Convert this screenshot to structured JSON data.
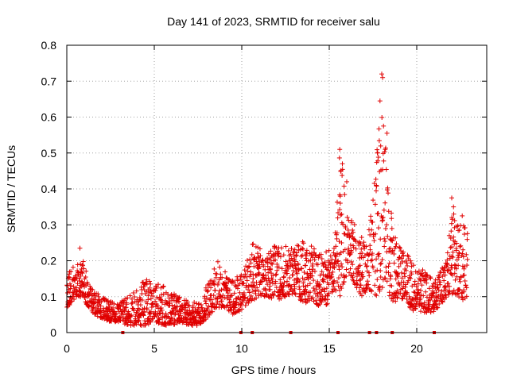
{
  "chart_data": {
    "type": "scatter",
    "title": "Day 141 of 2023, SRMTID for receiver salu",
    "xlabel": "GPS time / hours",
    "ylabel": "SRMTID / TECUs",
    "xlim": [
      0,
      24
    ],
    "ylim": [
      0,
      0.8
    ],
    "xticks": [
      0,
      5,
      10,
      15,
      20
    ],
    "xtick_labels": [
      "0",
      "5",
      "10",
      "15",
      "20"
    ],
    "yticks": [
      0,
      0.1,
      0.2,
      0.3,
      0.4,
      0.5,
      0.6,
      0.7,
      0.8
    ],
    "ytick_labels": [
      "0",
      "0.1",
      "0.2",
      "0.3",
      "0.4",
      "0.5",
      "0.6",
      "0.7",
      "0.8"
    ],
    "grid": true,
    "marker": "+",
    "series_color": "#e00000",
    "data_gaps_x": [
      3.2,
      9.95,
      10.6,
      12.8,
      15.5,
      17.3,
      17.7,
      18.6,
      21.0
    ],
    "envelope": {
      "x": [
        0,
        0.25,
        0.5,
        0.75,
        1.0,
        1.25,
        1.5,
        2.0,
        2.5,
        3.0,
        3.5,
        4.0,
        4.5,
        5.0,
        5.5,
        6.0,
        6.5,
        7.0,
        7.5,
        7.8,
        8.2,
        8.6,
        9.0,
        9.5,
        9.9,
        10.3,
        10.7,
        11.0,
        11.5,
        12.0,
        12.5,
        13.0,
        13.5,
        14.0,
        14.5,
        15.0,
        15.3,
        15.6,
        15.9,
        16.1,
        16.3,
        16.6,
        16.9,
        17.2,
        17.5,
        17.8,
        18.0,
        18.2,
        18.4,
        18.7,
        19.0,
        19.4,
        19.8,
        20.2,
        20.6,
        21.0,
        21.4,
        21.8,
        22.0,
        22.3,
        22.6,
        22.9
      ],
      "low": [
        0.07,
        0.08,
        0.09,
        0.1,
        0.09,
        0.07,
        0.05,
        0.04,
        0.03,
        0.03,
        0.02,
        0.02,
        0.02,
        0.03,
        0.02,
        0.02,
        0.03,
        0.02,
        0.02,
        0.03,
        0.05,
        0.07,
        0.07,
        0.05,
        0.06,
        0.08,
        0.09,
        0.1,
        0.1,
        0.09,
        0.1,
        0.11,
        0.08,
        0.09,
        0.07,
        0.08,
        0.12,
        0.1,
        0.15,
        0.17,
        0.15,
        0.12,
        0.1,
        0.12,
        0.1,
        0.1,
        0.12,
        0.15,
        0.1,
        0.08,
        0.1,
        0.08,
        0.06,
        0.06,
        0.05,
        0.06,
        0.08,
        0.1,
        0.11,
        0.1,
        0.09,
        0.1
      ],
      "high": [
        0.15,
        0.18,
        0.19,
        0.21,
        0.2,
        0.14,
        0.12,
        0.1,
        0.09,
        0.09,
        0.1,
        0.12,
        0.15,
        0.14,
        0.13,
        0.11,
        0.1,
        0.09,
        0.08,
        0.1,
        0.17,
        0.2,
        0.18,
        0.15,
        0.16,
        0.2,
        0.26,
        0.24,
        0.22,
        0.25,
        0.24,
        0.24,
        0.26,
        0.24,
        0.22,
        0.23,
        0.25,
        0.5,
        0.42,
        0.38,
        0.32,
        0.3,
        0.26,
        0.25,
        0.4,
        0.55,
        0.71,
        0.56,
        0.42,
        0.28,
        0.24,
        0.22,
        0.2,
        0.18,
        0.17,
        0.14,
        0.18,
        0.26,
        0.36,
        0.3,
        0.32,
        0.28
      ]
    },
    "peaks": [
      {
        "x": 0.75,
        "y": 0.235
      },
      {
        "x": 15.6,
        "y": 0.51
      },
      {
        "x": 15.75,
        "y": 0.47
      },
      {
        "x": 16.0,
        "y": 0.42
      },
      {
        "x": 17.9,
        "y": 0.645
      },
      {
        "x": 18.0,
        "y": 0.72
      },
      {
        "x": 18.05,
        "y": 0.71
      },
      {
        "x": 18.1,
        "y": 0.575
      },
      {
        "x": 18.3,
        "y": 0.555
      },
      {
        "x": 18.2,
        "y": 0.51
      },
      {
        "x": 17.75,
        "y": 0.5
      },
      {
        "x": 22.0,
        "y": 0.375
      },
      {
        "x": 22.1,
        "y": 0.35
      },
      {
        "x": 22.6,
        "y": 0.325
      }
    ]
  }
}
